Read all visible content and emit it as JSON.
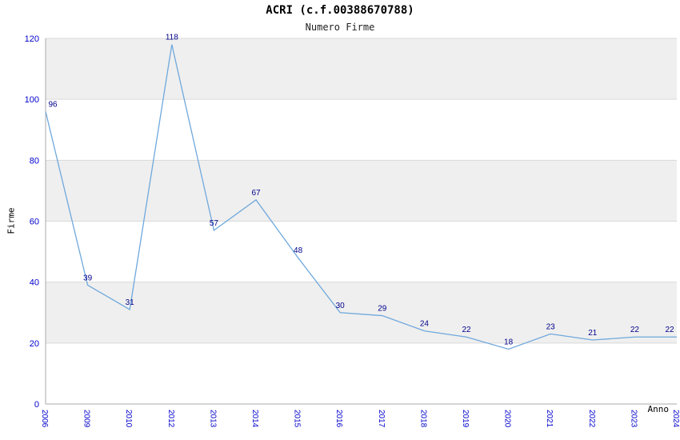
{
  "chart_data": {
    "type": "line",
    "title": "ACRI (c.f.00388670788)",
    "subtitle": "Numero Firme",
    "xlabel": "Anno",
    "ylabel": "Firme",
    "categories": [
      "2006",
      "2009",
      "2010",
      "2012",
      "2013",
      "2014",
      "2015",
      "2016",
      "2017",
      "2018",
      "2019",
      "2020",
      "2021",
      "2022",
      "2023",
      "2024"
    ],
    "values": [
      96,
      39,
      31,
      118,
      57,
      67,
      48,
      30,
      29,
      24,
      22,
      18,
      23,
      21,
      22,
      22
    ],
    "ylim": [
      0,
      120
    ],
    "ytick_step": 20,
    "yticks": [
      0,
      20,
      40,
      60,
      80,
      100,
      120
    ],
    "grid": true,
    "legend": "none",
    "point_labels_visible": true,
    "colors": {
      "line": "#6fa8dc",
      "point_label": "#00008b",
      "tick_label": "#0000cc",
      "band": "#efefef",
      "background": "#ffffff",
      "grid_line": "#dadada",
      "axis_line": "#aaaaaa",
      "title": "#000000"
    }
  }
}
